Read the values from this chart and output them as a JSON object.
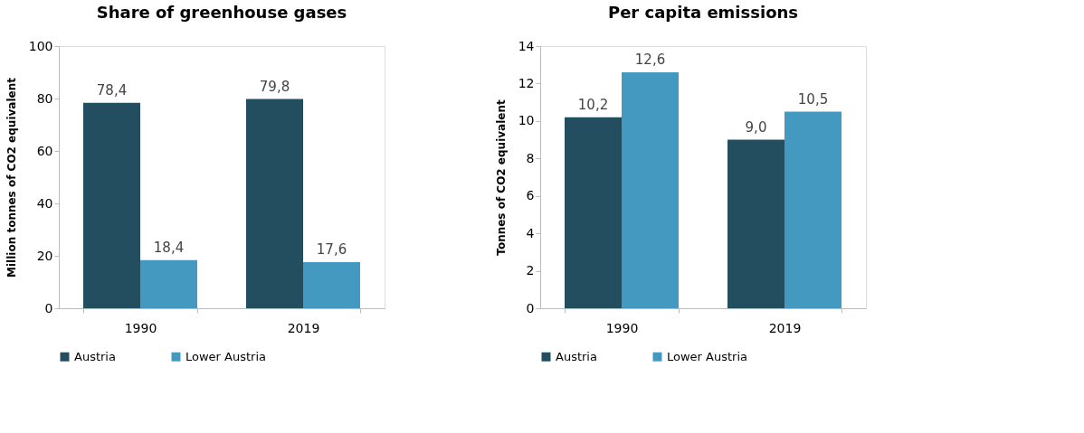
{
  "chart_data": [
    {
      "type": "bar",
      "title": "Share of greenhouse gases",
      "ylabel": "Million tonnes of CO2 equivalent",
      "categories": [
        "1990",
        "2019"
      ],
      "series": [
        {
          "name": "Austria",
          "color": "#234e60",
          "values": [
            78.4,
            79.8
          ],
          "value_labels": [
            "78,4",
            "79,8"
          ]
        },
        {
          "name": "Lower Austria",
          "color": "#4499c1",
          "values": [
            18.4,
            17.6
          ],
          "value_labels": [
            "18,4",
            "17,6"
          ]
        }
      ],
      "ylim": [
        0,
        100
      ],
      "yticks": [
        0,
        20,
        40,
        60,
        80,
        100
      ],
      "grid": false,
      "legend": "bottom"
    },
    {
      "type": "bar",
      "title": "Per capita emissions",
      "ylabel": "Tonnes of CO2 equivalent",
      "categories": [
        "1990",
        "2019"
      ],
      "series": [
        {
          "name": "Austria",
          "color": "#234e60",
          "values": [
            10.2,
            9.0
          ],
          "value_labels": [
            "10,2",
            "9,0"
          ]
        },
        {
          "name": "Lower Austria",
          "color": "#4499c1",
          "values": [
            12.6,
            10.5
          ],
          "value_labels": [
            "12,6",
            "10,5"
          ]
        }
      ],
      "ylim": [
        0,
        14
      ],
      "yticks": [
        0,
        2,
        4,
        6,
        8,
        10,
        12,
        14
      ],
      "grid": false,
      "legend": "bottom"
    }
  ]
}
